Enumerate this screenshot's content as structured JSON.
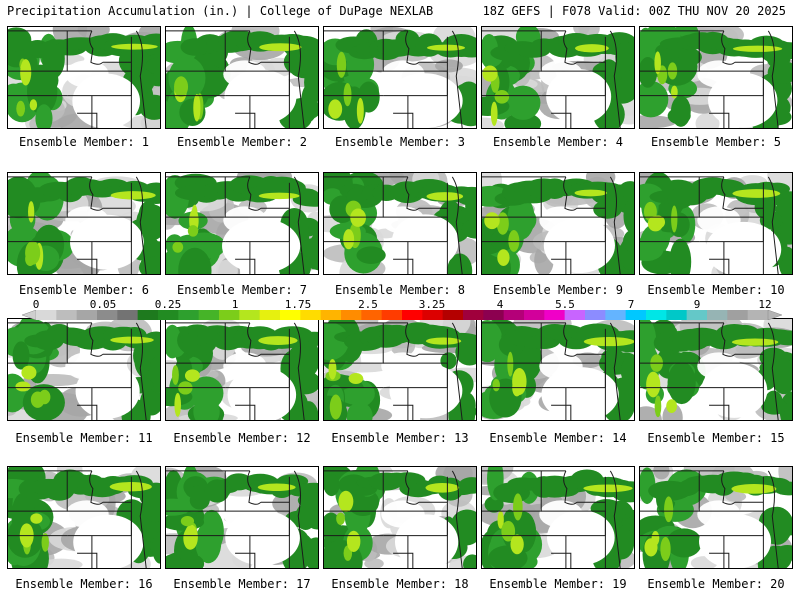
{
  "header": {
    "left": "Precipitation Accumulation (in.) | College of DuPage NEXLAB",
    "right": "18Z GEFS | F078 Valid: 00Z THU NOV 20 2025"
  },
  "colorbar": {
    "labels": [
      "0",
      "0.05",
      "0.25",
      "1",
      "1.75",
      "2.5",
      "3.25",
      "4",
      "5.5",
      "7",
      "9",
      "12"
    ],
    "colors": [
      "#d9d9d9",
      "#bdbdbd",
      "#a6a6a6",
      "#8c8c8c",
      "#737373",
      "#1e7a1e",
      "#228b22",
      "#2ea02e",
      "#46b428",
      "#7ccd1a",
      "#b4e61e",
      "#e6f00f",
      "#ffff00",
      "#ffdc00",
      "#ffb400",
      "#ff8c00",
      "#ff6400",
      "#ff3c00",
      "#ff0000",
      "#dc0000",
      "#b40000",
      "#a0003c",
      "#8c0050",
      "#b40078",
      "#d2009b",
      "#f000c8",
      "#c864ff",
      "#8c8cff",
      "#64b4ff",
      "#00c8ff",
      "#00e6e6",
      "#00c8c8",
      "#64c8c8",
      "#96b4b4",
      "#a0a0a0",
      "#b4b4b4"
    ]
  },
  "members": [
    {
      "label": "Ensemble Member: 1"
    },
    {
      "label": "Ensemble Member: 2"
    },
    {
      "label": "Ensemble Member: 3"
    },
    {
      "label": "Ensemble Member: 4"
    },
    {
      "label": "Ensemble Member: 5"
    },
    {
      "label": "Ensemble Member: 6"
    },
    {
      "label": "Ensemble Member: 7"
    },
    {
      "label": "Ensemble Member: 8"
    },
    {
      "label": "Ensemble Member: 9"
    },
    {
      "label": "Ensemble Member: 10"
    },
    {
      "label": "Ensemble Member: 11"
    },
    {
      "label": "Ensemble Member: 12"
    },
    {
      "label": "Ensemble Member: 13"
    },
    {
      "label": "Ensemble Member: 14"
    },
    {
      "label": "Ensemble Member: 15"
    },
    {
      "label": "Ensemble Member: 16"
    },
    {
      "label": "Ensemble Member: 17"
    },
    {
      "label": "Ensemble Member: 18"
    },
    {
      "label": "Ensemble Member: 19"
    },
    {
      "label": "Ensemble Member: 20"
    }
  ]
}
